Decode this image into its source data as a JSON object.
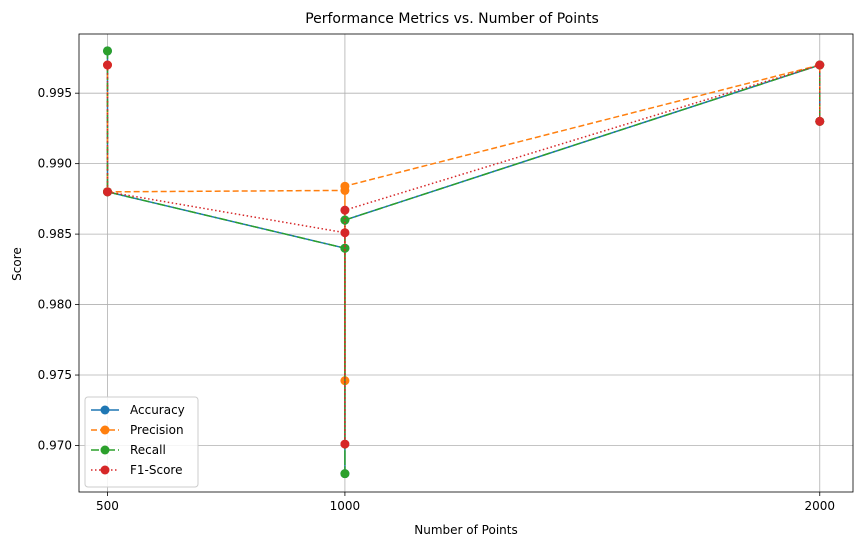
{
  "chart_data": {
    "type": "line",
    "title": "Performance Metrics vs. Number of Points",
    "xlabel": "Number of Points",
    "ylabel": "Score",
    "xlim": [
      440,
      2070
    ],
    "ylim": [
      0.9667,
      0.9992
    ],
    "xticks": [
      500,
      1000,
      2000
    ],
    "yticks": [
      0.97,
      0.975,
      0.98,
      0.985,
      0.99,
      0.995
    ],
    "grid": true,
    "legend_position": "lower-left",
    "series": [
      {
        "name": "Accuracy",
        "color": "#1f77b4",
        "dash": "solid",
        "points": [
          [
            500,
            0.998
          ],
          [
            500,
            0.988
          ],
          [
            1000,
            0.984
          ],
          [
            1000,
            0.968
          ],
          [
            1000,
            0.986
          ],
          [
            2000,
            0.997
          ],
          [
            2000,
            0.993
          ]
        ]
      },
      {
        "name": "Precision",
        "color": "#ff7f0e",
        "dash": "dashed",
        "points": [
          [
            500,
            0.997
          ],
          [
            500,
            0.988
          ],
          [
            1000,
            0.9881
          ],
          [
            1000,
            0.9746
          ],
          [
            1000,
            0.9884
          ],
          [
            2000,
            0.997
          ],
          [
            2000,
            0.993
          ]
        ]
      },
      {
        "name": "Recall",
        "color": "#2ca02c",
        "dash": "dashdot",
        "points": [
          [
            500,
            0.998
          ],
          [
            500,
            0.988
          ],
          [
            1000,
            0.984
          ],
          [
            1000,
            0.968
          ],
          [
            1000,
            0.986
          ],
          [
            2000,
            0.997
          ],
          [
            2000,
            0.993
          ]
        ]
      },
      {
        "name": "F1-Score",
        "color": "#d62728",
        "dash": "dotted",
        "points": [
          [
            500,
            0.997
          ],
          [
            500,
            0.988
          ],
          [
            1000,
            0.9851
          ],
          [
            1000,
            0.9701
          ],
          [
            1000,
            0.9867
          ],
          [
            2000,
            0.997
          ],
          [
            2000,
            0.993
          ]
        ]
      }
    ]
  }
}
